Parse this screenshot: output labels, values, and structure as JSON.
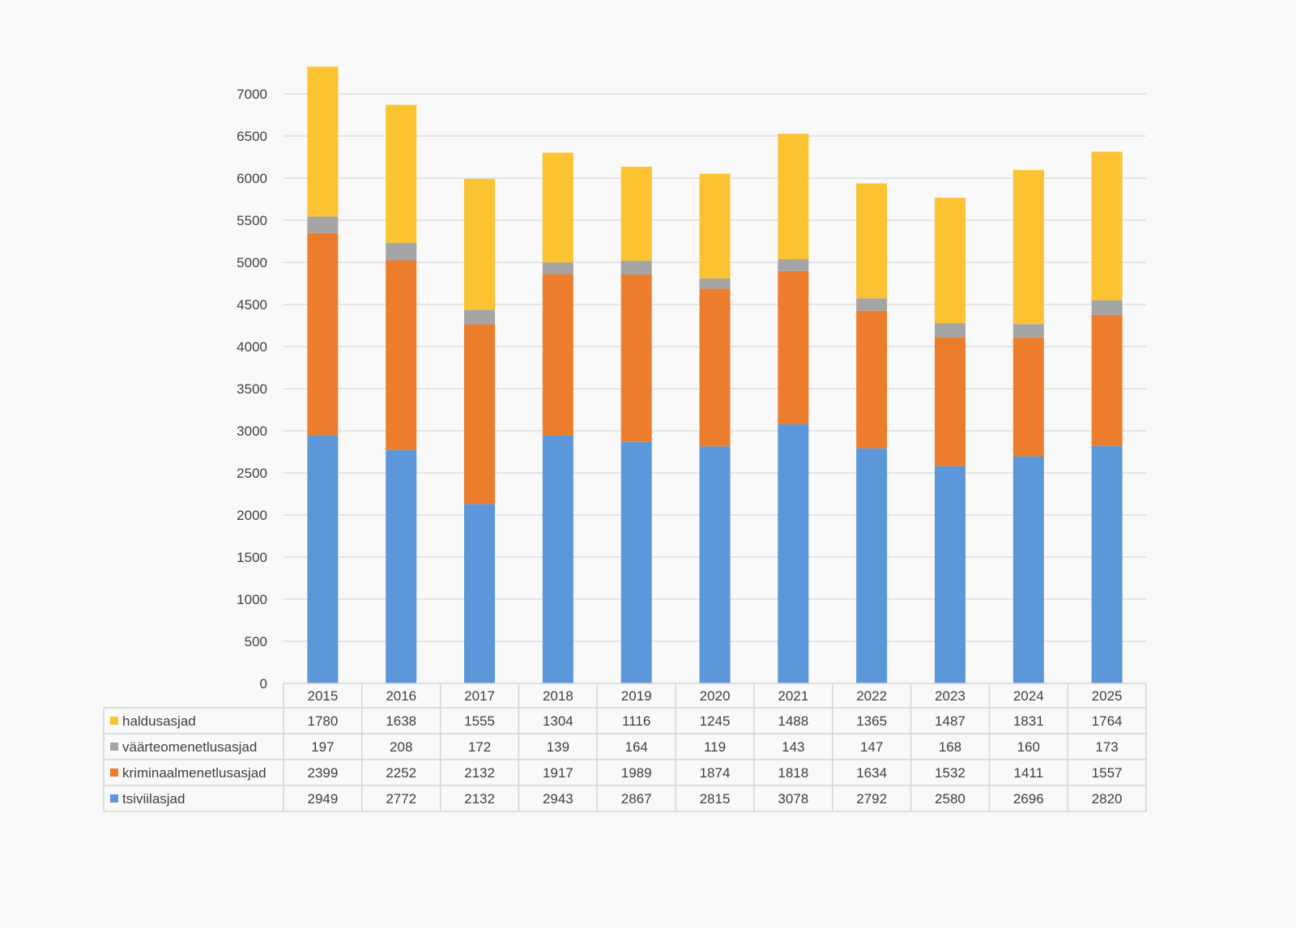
{
  "chart_data": {
    "type": "bar",
    "stacked": true,
    "title": "",
    "xlabel": "",
    "ylabel": "",
    "ylim": [
      0,
      7000
    ],
    "yticks": [
      0,
      500,
      1000,
      1500,
      2000,
      2500,
      3000,
      3500,
      4000,
      4500,
      5000,
      5500,
      6000,
      6500,
      7000
    ],
    "grid": true,
    "legend": "data-table-left",
    "categories": [
      "2015",
      "2016",
      "2017",
      "2018",
      "2019",
      "2020",
      "2021",
      "2022",
      "2023",
      "2024",
      "2025"
    ],
    "series": [
      {
        "name": "tsiviilasjad",
        "color": "#5b97d9",
        "values": [
          2949,
          2772,
          2132,
          2943,
          2867,
          2815,
          3078,
          2792,
          2580,
          2696,
          2820
        ]
      },
      {
        "name": "kriminaalmenetlusasjad",
        "color": "#ec7d2c",
        "values": [
          2399,
          2252,
          2132,
          1917,
          1989,
          1874,
          1818,
          1634,
          1532,
          1411,
          1557
        ]
      },
      {
        "name": "väärteomenetlusasjad",
        "color": "#a5a5a5",
        "values": [
          197,
          208,
          172,
          139,
          164,
          119,
          143,
          147,
          168,
          160,
          173
        ]
      },
      {
        "name": "haldusasjad",
        "color": "#fbc331",
        "values": [
          1780,
          1638,
          1555,
          1304,
          1116,
          1245,
          1488,
          1365,
          1487,
          1831,
          1764
        ]
      }
    ],
    "table_row_order": [
      "haldusasjad",
      "väärteomenetlusasjad",
      "kriminaalmenetlusasjad",
      "tsiviilasjad"
    ]
  }
}
